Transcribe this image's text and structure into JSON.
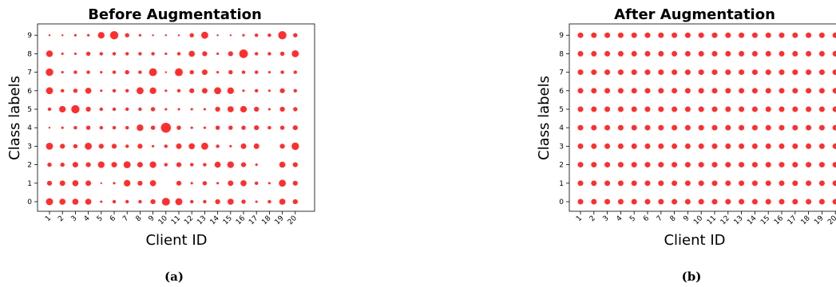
{
  "colors": {
    "marker": "#ff0000",
    "axes": "#000000"
  },
  "chart_data": [
    {
      "type": "scatter",
      "title": "Before Augmentation",
      "xlabel": "Client ID",
      "ylabel": "Class labels",
      "caption": "(a)",
      "x_ticks": [
        "1",
        "2",
        "3",
        "4",
        "5",
        "6",
        "7",
        "8",
        "9",
        "10",
        "11",
        "12",
        "13",
        "14",
        "15",
        "16",
        "17",
        "18",
        "19",
        "20"
      ],
      "y_ticks": [
        "0",
        "1",
        "2",
        "3",
        "4",
        "5",
        "6",
        "7",
        "8",
        "9"
      ],
      "grid": false,
      "encoding": "marker size = relative sample count (0-10 scale)",
      "sizes": [
        [
          4,
          3,
          3,
          3,
          0.5,
          1,
          1,
          1,
          2,
          5,
          4,
          1,
          1,
          2,
          3,
          1.5,
          0.5,
          1,
          3,
          2
        ],
        [
          2,
          2.5,
          3,
          2.5,
          0.3,
          0.5,
          3.5,
          2,
          3,
          0,
          2,
          0.5,
          1.5,
          0.5,
          2.5,
          3,
          1,
          0.5,
          4,
          2
        ],
        [
          1.5,
          1.5,
          2.5,
          2,
          3.5,
          2.5,
          4,
          2.5,
          3.5,
          1,
          2,
          1,
          1,
          3,
          3.5,
          2,
          0.5,
          0,
          3,
          2
        ],
        [
          4,
          2,
          1.5,
          4,
          2,
          2,
          1,
          2,
          0.5,
          1,
          2.5,
          3,
          4,
          1,
          0.5,
          2.5,
          2.5,
          0,
          2,
          4.5
        ],
        [
          0.3,
          0.5,
          1,
          1.5,
          1,
          1,
          1,
          3.5,
          1.5,
          8,
          1.5,
          0.5,
          0.5,
          1.5,
          1.5,
          1.5,
          2,
          1,
          1.5,
          2
        ],
        [
          1,
          3.5,
          5.5,
          2,
          1,
          1,
          1,
          1,
          1.5,
          0.5,
          0.5,
          0.5,
          0.5,
          2,
          3,
          3.5,
          2,
          0.5,
          2,
          1.5
        ],
        [
          4,
          1,
          1.5,
          3,
          0.5,
          1,
          1,
          4,
          3.5,
          0.5,
          1,
          2,
          2.5,
          4,
          3.5,
          0.5,
          1,
          0.5,
          2,
          1
        ],
        [
          4.5,
          0.5,
          1,
          1,
          0.5,
          1,
          1.5,
          1,
          5,
          0.3,
          5,
          1.5,
          2.5,
          0.5,
          1.5,
          1,
          1,
          0.5,
          1,
          1
        ],
        [
          3.5,
          0.5,
          0.5,
          1.5,
          1,
          1,
          1,
          1,
          1,
          0.5,
          1,
          3,
          2,
          0.5,
          2,
          6,
          1,
          1,
          1.5,
          4
        ],
        [
          0.3,
          0.3,
          0.5,
          0.5,
          3.5,
          5.5,
          1.5,
          0.5,
          0.3,
          0.3,
          0.3,
          1.5,
          4,
          0.3,
          0.3,
          0.5,
          1,
          1,
          5.5,
          1.5
        ]
      ]
    },
    {
      "type": "scatter",
      "title": "After Augmentation",
      "xlabel": "Client ID",
      "ylabel": "Class labels",
      "caption": "(b)",
      "x_ticks": [
        "1",
        "2",
        "3",
        "4",
        "5",
        "6",
        "7",
        "8",
        "9",
        "10",
        "11",
        "12",
        "13",
        "14",
        "15",
        "16",
        "17",
        "18",
        "19",
        "20"
      ],
      "y_ticks": [
        "0",
        "1",
        "2",
        "3",
        "4",
        "5",
        "6",
        "7",
        "8",
        "9"
      ],
      "grid": false,
      "encoding": "marker size = relative sample count (0-10 scale)",
      "uniform_size": 2.5
    }
  ]
}
